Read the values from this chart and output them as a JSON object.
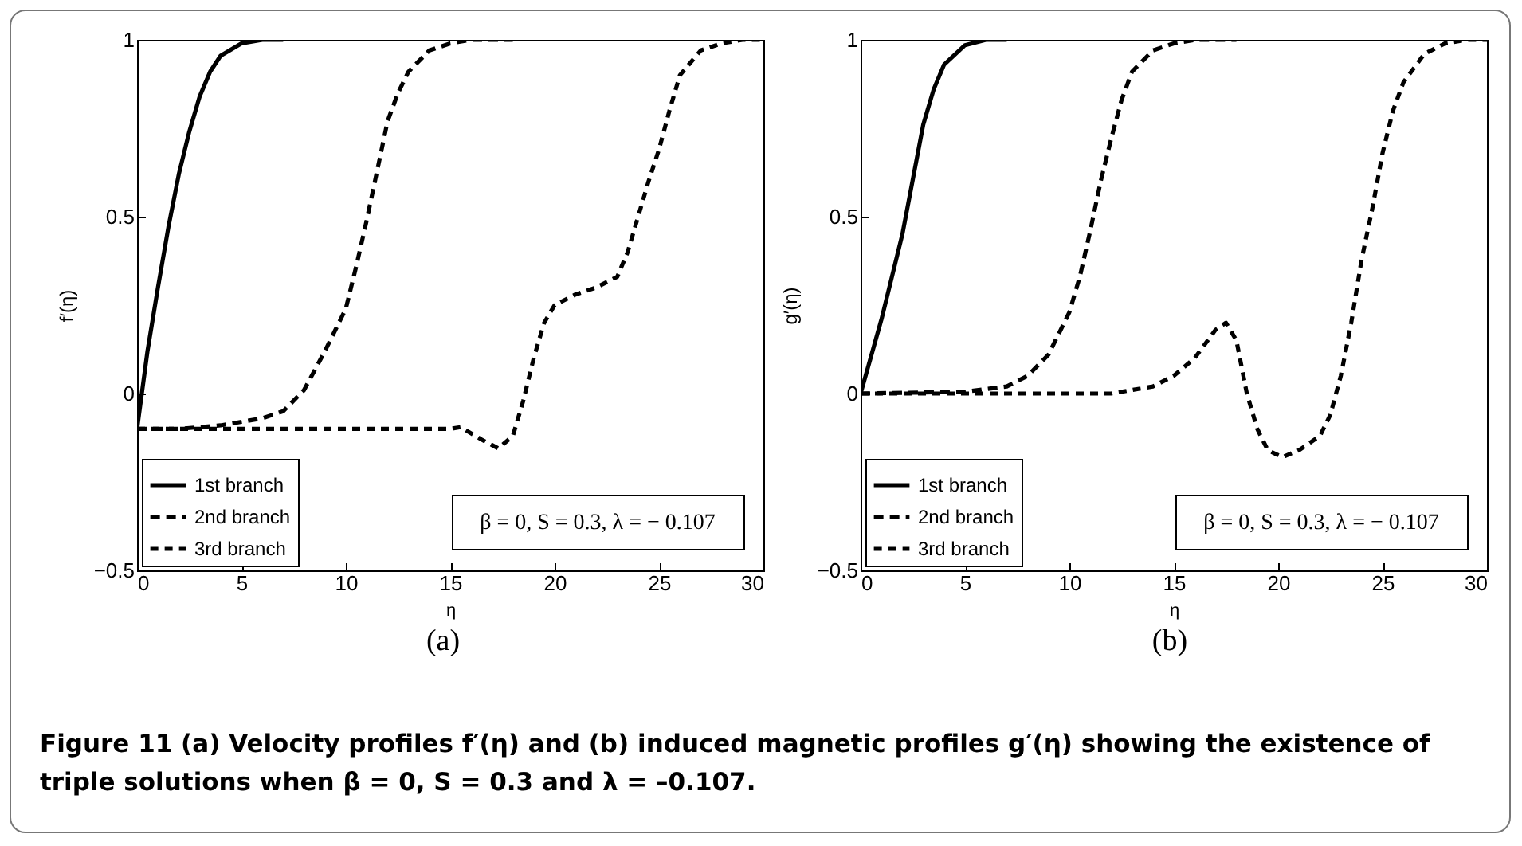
{
  "chart_data": [
    {
      "type": "line",
      "xlabel": "η",
      "ylabel": "f′(η)",
      "xlim": [
        0,
        30
      ],
      "ylim": [
        -0.5,
        1
      ],
      "xticks": [
        0,
        5,
        10,
        15,
        20,
        25,
        30
      ],
      "yticks": [
        {
          "value": -0.5,
          "label": "−0.5"
        },
        0,
        0.5,
        1
      ],
      "grid": false,
      "legend": "bottom left",
      "annotations": [
        "β = 0, S = 0.3, λ = − 0.107",
        "(a)"
      ],
      "series": [
        {
          "name": "1st branch",
          "color": "#000000",
          "line_style": "solid",
          "x": [
            0,
            0.5,
            1,
            1.5,
            2,
            2.5,
            3,
            3.5,
            4,
            5,
            6,
            7
          ],
          "values": [
            -0.1,
            0.12,
            0.3,
            0.47,
            0.62,
            0.74,
            0.84,
            0.91,
            0.955,
            0.99,
            1,
            1
          ]
        },
        {
          "name": "2nd branch",
          "color": "#000000",
          "line_style": "dashed",
          "x": [
            0,
            2,
            4,
            5,
            6,
            7,
            8,
            9,
            10,
            10.5,
            11,
            11.5,
            12,
            12.5,
            13,
            14,
            15,
            16,
            18
          ],
          "values": [
            -0.1,
            -0.1,
            -0.09,
            -0.08,
            -0.07,
            -0.05,
            0.01,
            0.12,
            0.24,
            0.36,
            0.49,
            0.63,
            0.77,
            0.85,
            0.91,
            0.97,
            0.99,
            1,
            1
          ]
        },
        {
          "name": "3rd branch",
          "color": "#000000",
          "line_style": "dashed",
          "x": [
            0,
            5,
            10,
            15,
            15.5,
            16.5,
            17.3,
            18,
            18.5,
            19,
            19.5,
            20,
            21,
            22,
            23,
            23.5,
            24,
            24.5,
            25,
            25.5,
            26,
            27,
            28,
            29,
            30
          ],
          "values": [
            -0.1,
            -0.1,
            -0.1,
            -0.1,
            -0.095,
            -0.13,
            -0.155,
            -0.12,
            -0.02,
            0.1,
            0.2,
            0.25,
            0.28,
            0.3,
            0.33,
            0.4,
            0.5,
            0.6,
            0.69,
            0.8,
            0.9,
            0.97,
            0.99,
            1,
            1
          ]
        }
      ]
    },
    {
      "type": "line",
      "xlabel": "η",
      "ylabel": "g′(η)",
      "xlim": [
        0,
        30
      ],
      "ylim": [
        -0.5,
        1
      ],
      "xticks": [
        0,
        5,
        10,
        15,
        20,
        25,
        30
      ],
      "yticks": [
        {
          "value": -0.5,
          "label": "−0.5"
        },
        0,
        0.5,
        1
      ],
      "grid": false,
      "legend": "bottom left",
      "annotations": [
        "β = 0, S = 0.3, λ = − 0.107",
        "(b)",
        "Figure 11  (a) Velocity profiles f′(η) and (b) induced magnetic profiles g′(η) showing the existence of triple solutions when β = 0, S = 0.3 and λ = –0.107."
      ],
      "series": [
        {
          "name": "1st branch",
          "color": "#000000",
          "line_style": "solid",
          "x": [
            0,
            1,
            2,
            3,
            3.5,
            4,
            5,
            6,
            7
          ],
          "values": [
            0,
            0.21,
            0.45,
            0.76,
            0.86,
            0.93,
            0.985,
            1,
            1
          ]
        },
        {
          "name": "2nd branch",
          "color": "#000000",
          "line_style": "dashed",
          "x": [
            0,
            5,
            7,
            8,
            9,
            10,
            10.5,
            11,
            11.5,
            12,
            12.5,
            13,
            14,
            15,
            16,
            18
          ],
          "values": [
            0,
            0.005,
            0.02,
            0.05,
            0.11,
            0.23,
            0.33,
            0.46,
            0.6,
            0.72,
            0.83,
            0.91,
            0.97,
            0.99,
            1,
            1
          ]
        },
        {
          "name": "3rd branch",
          "color": "#000000",
          "line_style": "dashed",
          "x": [
            0,
            12,
            13,
            14,
            15,
            16,
            17,
            17.5,
            18,
            18.5,
            19,
            19.5,
            20.2,
            21,
            22,
            22.5,
            23,
            23.5,
            24,
            24.5,
            25,
            25.5,
            26,
            27,
            28,
            29,
            30
          ],
          "values": [
            0,
            0,
            0.01,
            0.02,
            0.05,
            0.1,
            0.18,
            0.2,
            0.15,
            0,
            -0.1,
            -0.16,
            -0.18,
            -0.16,
            -0.12,
            -0.06,
            0.05,
            0.2,
            0.38,
            0.52,
            0.68,
            0.8,
            0.88,
            0.96,
            0.99,
            1,
            1
          ]
        }
      ]
    }
  ]
}
